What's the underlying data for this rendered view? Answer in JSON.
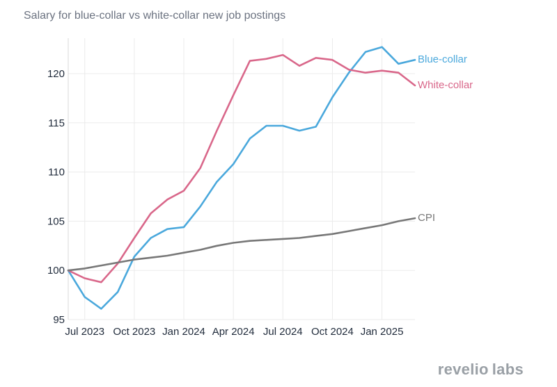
{
  "chart_data": {
    "type": "line",
    "title": "Salary for blue-collar vs white-collar new job postings",
    "xlabel": "",
    "ylabel": "",
    "ylim": [
      95,
      123.6
    ],
    "yticks": [
      95,
      100,
      105,
      110,
      115,
      120
    ],
    "x": [
      "2023-06",
      "2023-07",
      "2023-08",
      "2023-09",
      "2023-10",
      "2023-11",
      "2023-12",
      "2024-01",
      "2024-02",
      "2024-03",
      "2024-04",
      "2024-05",
      "2024-06",
      "2024-07",
      "2024-08",
      "2024-09",
      "2024-10",
      "2024-11",
      "2024-12",
      "2025-01",
      "2025-02",
      "2025-03"
    ],
    "xticks": [
      {
        "date": "2023-07",
        "label": "Jul 2023"
      },
      {
        "date": "2023-10",
        "label": "Oct 2023"
      },
      {
        "date": "2024-01",
        "label": "Jan 2024"
      },
      {
        "date": "2024-04",
        "label": "Apr 2024"
      },
      {
        "date": "2024-07",
        "label": "Jul 2024"
      },
      {
        "date": "2024-10",
        "label": "Oct 2024"
      },
      {
        "date": "2025-01",
        "label": "Jan 2025"
      }
    ],
    "grid": true,
    "series": [
      {
        "name": "Blue-collar",
        "color": "#4aa8dc",
        "values": [
          100,
          97.3,
          96.1,
          97.8,
          101.4,
          103.3,
          104.2,
          104.4,
          106.5,
          109.0,
          110.8,
          113.4,
          114.7,
          114.7,
          114.2,
          114.6,
          117.6,
          120.1,
          122.2,
          122.7,
          121.0,
          121.4
        ]
      },
      {
        "name": "White-collar",
        "color": "#d9678a",
        "values": [
          100,
          99.2,
          98.8,
          100.7,
          103.3,
          105.8,
          107.2,
          108.1,
          110.4,
          114.2,
          117.8,
          121.3,
          121.5,
          121.9,
          120.8,
          121.6,
          121.4,
          120.4,
          120.1,
          120.3,
          120.1,
          118.8
        ]
      },
      {
        "name": "CPI",
        "color": "#777777",
        "values": [
          100,
          100.2,
          100.5,
          100.8,
          101.1,
          101.3,
          101.5,
          101.8,
          102.1,
          102.5,
          102.8,
          103.0,
          103.1,
          103.2,
          103.3,
          103.5,
          103.7,
          104.0,
          104.3,
          104.6,
          105.0,
          105.3
        ]
      }
    ]
  },
  "brand": {
    "left": "revelio",
    "right": "labs"
  }
}
